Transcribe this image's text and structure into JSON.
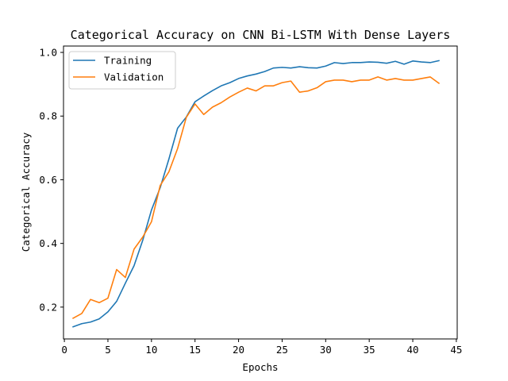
{
  "chart_data": {
    "type": "line",
    "title": "Categorical Accuracy on CNN Bi-LSTM With Dense Layers",
    "xlabel": "Epochs",
    "ylabel": "Categorical Accuracy",
    "xlim": [
      -0.1,
      45.1
    ],
    "ylim": [
      0.1,
      1.02
    ],
    "xticks": [
      0,
      5,
      10,
      15,
      20,
      25,
      30,
      35,
      40,
      45
    ],
    "yticks": [
      0.2,
      0.4,
      0.6,
      0.8,
      1.0
    ],
    "xtick_labels": [
      "0",
      "5",
      "10",
      "15",
      "20",
      "25",
      "30",
      "35",
      "40",
      "45"
    ],
    "ytick_labels": [
      "0.2",
      "0.4",
      "0.6",
      "0.8",
      "1.0"
    ],
    "grid": false,
    "legend_position": "top-left",
    "x": [
      1,
      2,
      3,
      4,
      5,
      6,
      7,
      8,
      9,
      10,
      11,
      12,
      13,
      14,
      15,
      16,
      17,
      18,
      19,
      20,
      21,
      22,
      23,
      24,
      25,
      26,
      27,
      28,
      29,
      30,
      31,
      32,
      33,
      34,
      35,
      36,
      37,
      38,
      39,
      40,
      41,
      42,
      43
    ],
    "series": [
      {
        "name": "Training",
        "color": "#1f77b4",
        "values": [
          0.138,
          0.148,
          0.153,
          0.163,
          0.185,
          0.218,
          0.275,
          0.33,
          0.41,
          0.505,
          0.575,
          0.665,
          0.762,
          0.797,
          0.845,
          0.863,
          0.88,
          0.895,
          0.905,
          0.918,
          0.926,
          0.932,
          0.94,
          0.951,
          0.953,
          0.951,
          0.955,
          0.952,
          0.951,
          0.957,
          0.968,
          0.965,
          0.968,
          0.968,
          0.97,
          0.969,
          0.966,
          0.972,
          0.963,
          0.973,
          0.97,
          0.968,
          0.974
        ]
      },
      {
        "name": "Validation",
        "color": "#ff7f0e",
        "values": [
          0.165,
          0.18,
          0.224,
          0.214,
          0.228,
          0.318,
          0.293,
          0.382,
          0.42,
          0.468,
          0.582,
          0.625,
          0.698,
          0.796,
          0.838,
          0.805,
          0.828,
          0.842,
          0.86,
          0.875,
          0.888,
          0.879,
          0.895,
          0.895,
          0.905,
          0.91,
          0.875,
          0.879,
          0.889,
          0.908,
          0.913,
          0.913,
          0.908,
          0.913,
          0.913,
          0.923,
          0.913,
          0.918,
          0.913,
          0.913,
          0.918,
          0.923,
          0.903
        ]
      }
    ]
  }
}
